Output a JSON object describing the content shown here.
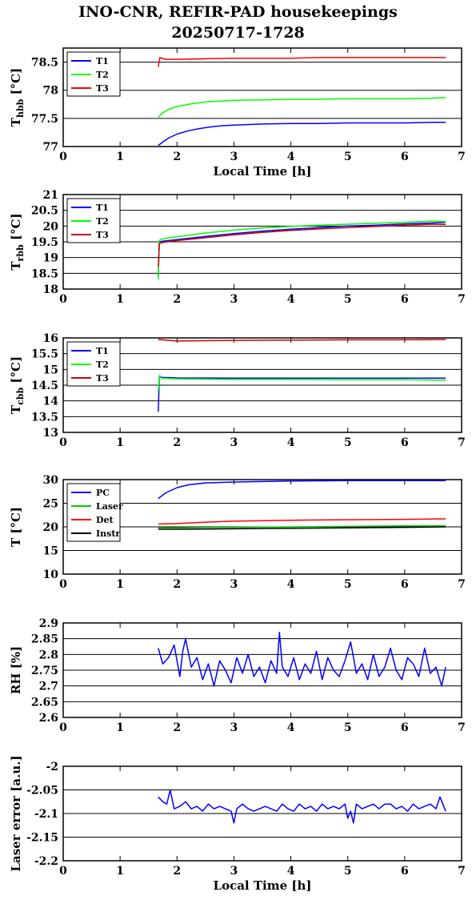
{
  "title_line1": "INO-CNR, REFIR-PAD housekeepings",
  "title_line2": "20250717-1728",
  "x_axis_label": "Local Time [h]",
  "chart_data": [
    {
      "type": "line",
      "ylabel": "T_hbb [°C]",
      "ylabel_main": "T",
      "ylabel_sub": "hbb",
      "ylabel_unit": "[°C]",
      "xlim": [
        0,
        7
      ],
      "ylim": [
        77,
        78.75
      ],
      "x_ticks": [
        "0",
        "1",
        "2",
        "3",
        "4",
        "5",
        "6",
        "7"
      ],
      "y_ticks": [
        "77",
        "77.5",
        "78",
        "78.5"
      ],
      "y_tick_values": [
        77,
        77.5,
        78,
        78.5
      ],
      "grid": true,
      "legend": "top-left",
      "series": [
        {
          "name": "T1",
          "color": "#0000ff",
          "x": [
            1.67,
            1.75,
            1.85,
            2.0,
            2.2,
            2.4,
            2.6,
            2.8,
            3.0,
            3.5,
            4.0,
            4.5,
            5.0,
            5.5,
            6.0,
            6.5,
            6.72
          ],
          "y": [
            77.02,
            77.08,
            77.15,
            77.22,
            77.28,
            77.32,
            77.35,
            77.37,
            77.38,
            77.4,
            77.41,
            77.41,
            77.42,
            77.42,
            77.42,
            77.43,
            77.43
          ]
        },
        {
          "name": "T2",
          "color": "#00ff00",
          "x": [
            1.67,
            1.75,
            1.85,
            2.0,
            2.2,
            2.4,
            2.6,
            2.8,
            3.0,
            3.5,
            4.0,
            4.5,
            5.0,
            5.5,
            6.0,
            6.5,
            6.72
          ],
          "y": [
            77.52,
            77.6,
            77.66,
            77.71,
            77.75,
            77.78,
            77.8,
            77.81,
            77.82,
            77.83,
            77.84,
            77.84,
            77.85,
            77.85,
            77.85,
            77.86,
            77.87
          ]
        },
        {
          "name": "T3",
          "color": "#ff0000",
          "x": [
            1.67,
            1.7,
            1.8,
            2.0,
            2.5,
            3.0,
            3.5,
            4.0,
            4.5,
            5.0,
            5.5,
            6.0,
            6.5,
            6.72
          ],
          "y": [
            78.42,
            78.58,
            78.55,
            78.55,
            78.56,
            78.57,
            78.57,
            78.57,
            78.58,
            78.58,
            78.58,
            78.58,
            78.58,
            78.58
          ]
        }
      ]
    },
    {
      "type": "line",
      "ylabel": "T_rbb [°C]",
      "ylabel_main": "T",
      "ylabel_sub": "rbb",
      "ylabel_unit": "[°C]",
      "xlim": [
        0,
        7
      ],
      "ylim": [
        18,
        21
      ],
      "x_ticks": [
        "0",
        "1",
        "2",
        "3",
        "4",
        "5",
        "6",
        "7"
      ],
      "y_ticks": [
        "18",
        "18.5",
        "19",
        "19.5",
        "20",
        "20.5",
        "21"
      ],
      "y_tick_values": [
        18,
        18.5,
        19,
        19.5,
        20,
        20.5,
        21
      ],
      "grid": true,
      "legend": "top-left",
      "series": [
        {
          "name": "T1",
          "color": "#0000ff",
          "x": [
            1.67,
            1.69,
            1.75,
            2.0,
            2.5,
            3.0,
            3.5,
            4.0,
            4.5,
            5.0,
            5.5,
            6.0,
            6.5,
            6.72
          ],
          "y": [
            18.4,
            19.5,
            19.52,
            19.57,
            19.67,
            19.76,
            19.84,
            19.9,
            19.95,
            20.0,
            20.03,
            20.07,
            20.1,
            20.12
          ]
        },
        {
          "name": "T2",
          "color": "#00ff00",
          "x": [
            1.67,
            1.69,
            1.75,
            2.0,
            2.5,
            3.0,
            3.5,
            4.0,
            4.5,
            5.0,
            5.5,
            6.0,
            6.5,
            6.72
          ],
          "y": [
            18.3,
            19.55,
            19.6,
            19.66,
            19.78,
            19.87,
            19.94,
            19.99,
            20.03,
            20.06,
            20.09,
            20.12,
            20.16,
            20.14
          ]
        },
        {
          "name": "T3",
          "color": "#cc0000",
          "x": [
            1.67,
            1.69,
            1.75,
            2.0,
            2.5,
            3.0,
            3.5,
            4.0,
            4.5,
            5.0,
            5.5,
            6.0,
            6.5,
            6.72
          ],
          "y": [
            18.7,
            19.45,
            19.48,
            19.54,
            19.63,
            19.72,
            19.8,
            19.86,
            19.91,
            19.95,
            19.99,
            20.03,
            20.06,
            20.05
          ]
        }
      ]
    },
    {
      "type": "line",
      "ylabel": "T_cbb [°C]",
      "ylabel_main": "T",
      "ylabel_sub": "cbb",
      "ylabel_unit": "[°C]",
      "xlim": [
        0,
        7
      ],
      "ylim": [
        13,
        16
      ],
      "x_ticks": [
        "0",
        "1",
        "2",
        "3",
        "4",
        "5",
        "6",
        "7"
      ],
      "y_ticks": [
        "13",
        "13.5",
        "14",
        "14.5",
        "15",
        "15.5",
        "16"
      ],
      "y_tick_values": [
        13,
        13.5,
        14,
        14.5,
        15,
        15.5,
        16
      ],
      "grid": true,
      "legend": "top-left",
      "series": [
        {
          "name": "T1",
          "color": "#0000ff",
          "x": [
            1.67,
            1.69,
            1.72,
            2.0,
            3.0,
            4.0,
            5.0,
            6.0,
            6.72
          ],
          "y": [
            13.65,
            14.8,
            14.75,
            14.73,
            14.72,
            14.72,
            14.72,
            14.72,
            14.72
          ]
        },
        {
          "name": "T2",
          "color": "#00ff00",
          "x": [
            1.67,
            1.69,
            1.72,
            2.0,
            3.0,
            4.0,
            5.0,
            6.0,
            6.72
          ],
          "y": [
            14.3,
            14.8,
            14.72,
            14.7,
            14.68,
            14.68,
            14.67,
            14.67,
            14.66
          ]
        },
        {
          "name": "T3",
          "color": "#cc0000",
          "x": [
            1.67,
            2.0,
            3.0,
            4.0,
            5.0,
            6.0,
            6.72
          ],
          "y": [
            15.95,
            15.9,
            15.92,
            15.93,
            15.94,
            15.94,
            15.95
          ]
        }
      ]
    },
    {
      "type": "line",
      "ylabel": "T [°C]",
      "ylabel_main": "T [°C]",
      "ylabel_sub": "",
      "ylabel_unit": "",
      "xlim": [
        0,
        7
      ],
      "ylim": [
        10,
        30
      ],
      "x_ticks": [
        "0",
        "1",
        "2",
        "3",
        "4",
        "5",
        "6",
        "7"
      ],
      "y_ticks": [
        "10",
        "15",
        "20",
        "25",
        "30"
      ],
      "y_tick_values": [
        10,
        15,
        20,
        25,
        30
      ],
      "grid": true,
      "legend": "top-left",
      "series": [
        {
          "name": "PC",
          "color": "#0000ff",
          "x": [
            1.67,
            1.8,
            2.0,
            2.2,
            2.5,
            3.0,
            3.5,
            4.0,
            5.0,
            6.0,
            6.72
          ],
          "y": [
            26.0,
            27.2,
            28.3,
            28.9,
            29.3,
            29.5,
            29.6,
            29.7,
            29.8,
            29.8,
            29.8
          ]
        },
        {
          "name": "Laser",
          "color": "#00cc00",
          "x": [
            1.67,
            2.0,
            3.0,
            4.0,
            5.0,
            6.0,
            6.72
          ],
          "y": [
            19.8,
            19.8,
            19.9,
            20.0,
            20.1,
            20.2,
            20.2
          ]
        },
        {
          "name": "Det",
          "color": "#ff0000",
          "x": [
            1.67,
            2.0,
            2.5,
            3.0,
            4.0,
            5.0,
            6.0,
            6.72
          ],
          "y": [
            20.6,
            20.7,
            21.0,
            21.2,
            21.4,
            21.5,
            21.6,
            21.7
          ]
        },
        {
          "name": "Instr",
          "color": "#000000",
          "x": [
            1.67,
            2.0,
            3.0,
            4.0,
            5.0,
            6.0,
            6.72
          ],
          "y": [
            19.5,
            19.5,
            19.6,
            19.7,
            19.8,
            19.9,
            20.0
          ]
        }
      ]
    },
    {
      "type": "line",
      "ylabel": "RH [%]",
      "ylabel_main": "RH [%]",
      "ylabel_sub": "",
      "ylabel_unit": "",
      "xlim": [
        0,
        7
      ],
      "ylim": [
        2.6,
        2.9
      ],
      "x_ticks": [
        "0",
        "1",
        "2",
        "3",
        "4",
        "5",
        "6",
        "7"
      ],
      "y_ticks": [
        "2.6",
        "2.65",
        "2.7",
        "2.75",
        "2.8",
        "2.85",
        "2.9"
      ],
      "y_tick_values": [
        2.6,
        2.65,
        2.7,
        2.75,
        2.8,
        2.85,
        2.9
      ],
      "grid": true,
      "legend": "none",
      "series": [
        {
          "color": "#0000ff",
          "x": [
            1.67,
            1.75,
            1.85,
            1.95,
            2.05,
            2.1,
            2.15,
            2.25,
            2.35,
            2.45,
            2.55,
            2.65,
            2.75,
            2.85,
            2.95,
            3.05,
            3.15,
            3.25,
            3.35,
            3.45,
            3.55,
            3.65,
            3.75,
            3.8,
            3.85,
            3.95,
            4.05,
            4.15,
            4.25,
            4.35,
            4.45,
            4.55,
            4.65,
            4.75,
            4.85,
            4.95,
            5.05,
            5.15,
            5.25,
            5.35,
            5.45,
            5.55,
            5.65,
            5.75,
            5.85,
            5.95,
            6.05,
            6.15,
            6.25,
            6.35,
            6.45,
            6.55,
            6.65,
            6.72
          ],
          "y": [
            2.82,
            2.77,
            2.79,
            2.83,
            2.73,
            2.81,
            2.85,
            2.76,
            2.79,
            2.72,
            2.77,
            2.7,
            2.78,
            2.75,
            2.71,
            2.79,
            2.74,
            2.8,
            2.73,
            2.76,
            2.71,
            2.78,
            2.74,
            2.87,
            2.76,
            2.73,
            2.79,
            2.72,
            2.77,
            2.74,
            2.81,
            2.72,
            2.79,
            2.75,
            2.73,
            2.78,
            2.84,
            2.74,
            2.77,
            2.72,
            2.8,
            2.73,
            2.76,
            2.82,
            2.75,
            2.72,
            2.79,
            2.77,
            2.73,
            2.82,
            2.74,
            2.76,
            2.7,
            2.76
          ]
        }
      ]
    },
    {
      "type": "line",
      "ylabel": "Laser error [a.u.]",
      "ylabel_main": "Laser error [a.u.]",
      "ylabel_sub": "",
      "ylabel_unit": "",
      "xlim": [
        0,
        7
      ],
      "ylim": [
        -2.2,
        -2.0
      ],
      "x_ticks": [
        "0",
        "1",
        "2",
        "3",
        "4",
        "5",
        "6",
        "7"
      ],
      "y_ticks": [
        "-2.2",
        "-2.15",
        "-2.1",
        "-2.05",
        "-2"
      ],
      "y_tick_values": [
        -2.2,
        -2.15,
        -2.1,
        -2.05,
        -2.0
      ],
      "grid": true,
      "legend": "none",
      "series": [
        {
          "color": "#0000ff",
          "x": [
            1.67,
            1.75,
            1.82,
            1.88,
            1.95,
            2.05,
            2.15,
            2.25,
            2.35,
            2.45,
            2.55,
            2.65,
            2.75,
            2.85,
            2.95,
            3.0,
            3.05,
            3.15,
            3.25,
            3.35,
            3.45,
            3.55,
            3.65,
            3.75,
            3.85,
            3.95,
            4.05,
            4.15,
            4.25,
            4.35,
            4.45,
            4.55,
            4.65,
            4.75,
            4.85,
            4.95,
            5.0,
            5.05,
            5.1,
            5.15,
            5.25,
            5.35,
            5.45,
            5.55,
            5.65,
            5.75,
            5.85,
            5.95,
            6.05,
            6.15,
            6.25,
            6.35,
            6.45,
            6.55,
            6.62,
            6.72
          ],
          "y": [
            -2.065,
            -2.075,
            -2.08,
            -2.05,
            -2.09,
            -2.085,
            -2.075,
            -2.09,
            -2.085,
            -2.095,
            -2.08,
            -2.09,
            -2.085,
            -2.09,
            -2.095,
            -2.12,
            -2.09,
            -2.08,
            -2.09,
            -2.095,
            -2.09,
            -2.085,
            -2.09,
            -2.095,
            -2.08,
            -2.09,
            -2.095,
            -2.08,
            -2.09,
            -2.085,
            -2.095,
            -2.08,
            -2.09,
            -2.085,
            -2.09,
            -2.08,
            -2.11,
            -2.095,
            -2.12,
            -2.08,
            -2.09,
            -2.085,
            -2.08,
            -2.09,
            -2.08,
            -2.08,
            -2.09,
            -2.085,
            -2.095,
            -2.08,
            -2.09,
            -2.085,
            -2.08,
            -2.09,
            -2.065,
            -2.095
          ]
        }
      ]
    }
  ]
}
